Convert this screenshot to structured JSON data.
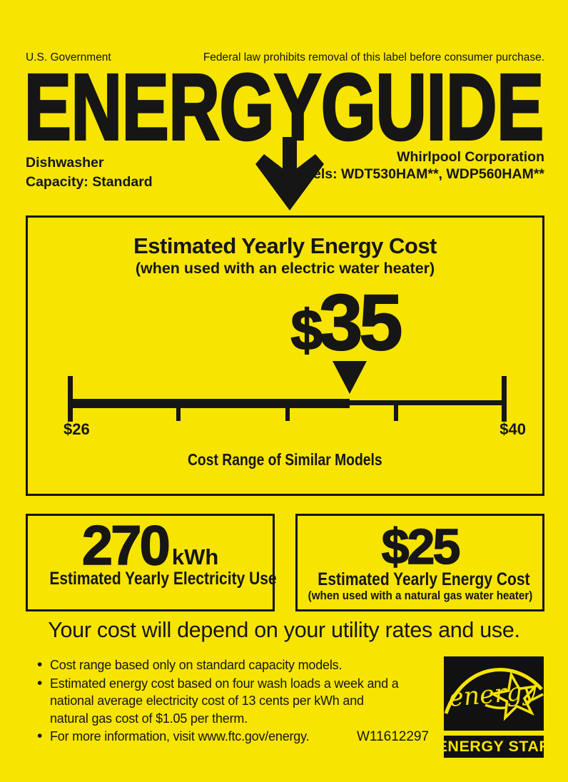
{
  "colors": {
    "background": "#F7E400",
    "ink": "#161616"
  },
  "header": {
    "government_label": "U.S. Government",
    "federal_notice": "Federal law prohibits removal of this label before consumer purchase.",
    "logo_text": "ENERGYGUIDE",
    "appliance_type": "Dishwasher",
    "capacity": "Capacity: Standard",
    "manufacturer": "Whirlpool Corporation",
    "models": "Models: WDT530HAM**, WDP560HAM**"
  },
  "main_box": {
    "title": "Estimated Yearly Energy Cost",
    "subtitle": "(when used with an electric water heater)",
    "cost_currency": "$",
    "cost_amount": "35",
    "scale": {
      "min": 26,
      "max": 40,
      "value": 35,
      "min_label": "$26",
      "max_label": "$40",
      "caption": "Cost Range of Similar Models"
    }
  },
  "electricity_box": {
    "value": "270",
    "unit": "kWh",
    "label": "Estimated Yearly Electricity Use"
  },
  "gas_box": {
    "value": "$25",
    "label": "Estimated Yearly Energy Cost",
    "sublabel": "(when used with a natural gas water heater)"
  },
  "footer": {
    "utility_note": "Your cost will depend on your utility rates and use.",
    "bullets": [
      "Cost range based only on standard capacity models.",
      "Estimated energy cost based on four wash loads a week and a national average electricity cost of 13 cents per kWh and natural gas cost of $1.05 per therm.",
      "For more information, visit www.ftc.gov/energy."
    ],
    "part_number": "W11612297",
    "energy_star": {
      "script_text": "energy",
      "label": "ENERGY STAR"
    }
  }
}
